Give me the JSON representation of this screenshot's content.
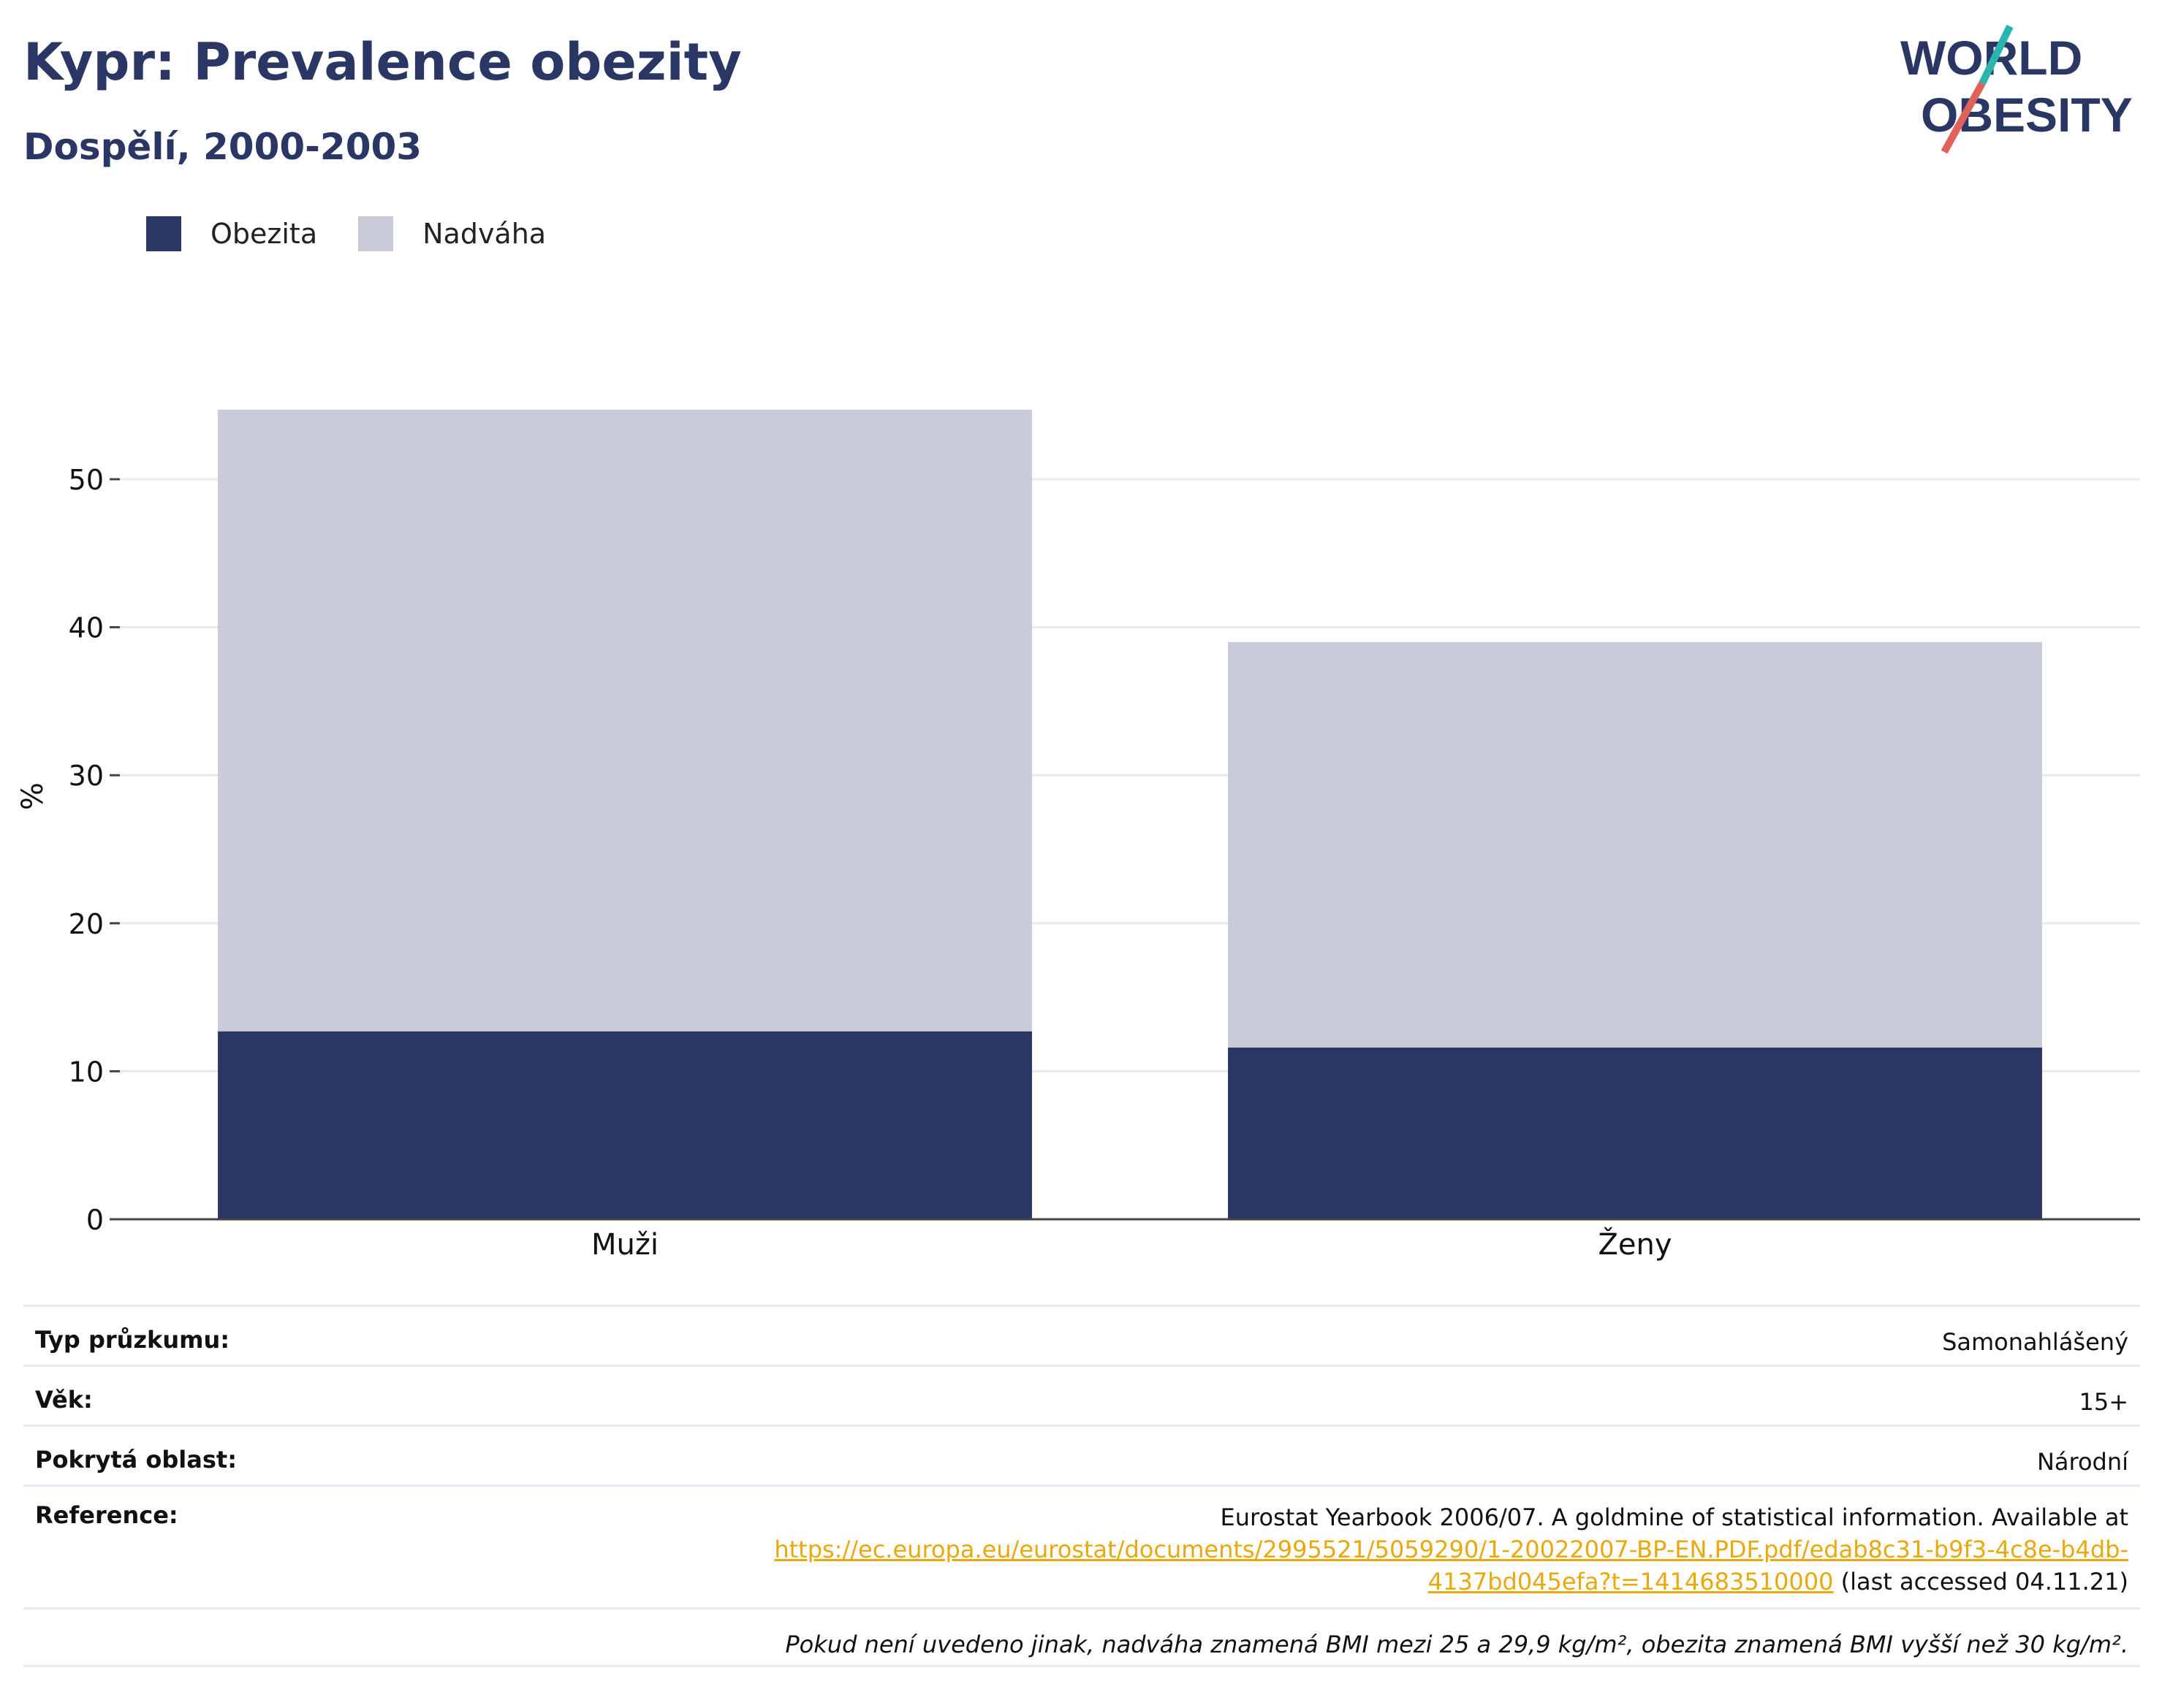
{
  "title": "Kypr: Prevalence obezity",
  "subtitle": "Dospělí, 2000-2003",
  "logo": {
    "line1": "WORLD",
    "line2": "OBESITY"
  },
  "colors": {
    "obesity": "#2a3663",
    "overweight": "#c9ccd8",
    "accent_teal": "#2bb5b0",
    "accent_red": "#e0625a",
    "link": "#e9a80b"
  },
  "legend": [
    {
      "name": "Obezita",
      "color": "#2a3663"
    },
    {
      "name": "Nadváha",
      "color": "#c9ccd8"
    }
  ],
  "chart_data": {
    "type": "bar",
    "stacked": true,
    "categories": [
      "Muži",
      "Ženy"
    ],
    "series": [
      {
        "name": "Obezita",
        "values": [
          12.7,
          11.6
        ]
      },
      {
        "name": "Nadváha",
        "values": [
          42.0,
          27.4
        ]
      }
    ],
    "ylabel": "%",
    "ylim": [
      0,
      60
    ],
    "yticks": [
      0,
      10,
      20,
      30,
      40,
      50
    ],
    "grid": true,
    "legend_position": "top-left"
  },
  "info": {
    "survey_type": {
      "label": "Typ průzkumu:",
      "value": "Samonahlášený"
    },
    "age": {
      "label": "Věk:",
      "value": "15+"
    },
    "coverage": {
      "label": "Pokrytá oblast:",
      "value": "Národní"
    },
    "reference": {
      "label": "Reference:",
      "text_before": "Eurostat Yearbook 2006/07. A goldmine of statistical information. Available at",
      "link_part1": "https://ec.europa.eu/eurostat/documents/2995521/5059290/1-20022007-BP-EN.PDF.pdf/edab8c31-b9f3-4c8e-b4db-",
      "link_part2": "4137bd045efa?t=1414683510000",
      "text_after": " (last accessed 04.11.21)"
    },
    "footnote": "Pokud není uvedeno jinak, nadváha znamená BMI mezi 25 a 29,9 kg/m², obezita znamená BMI vyšší než 30 kg/m²."
  }
}
